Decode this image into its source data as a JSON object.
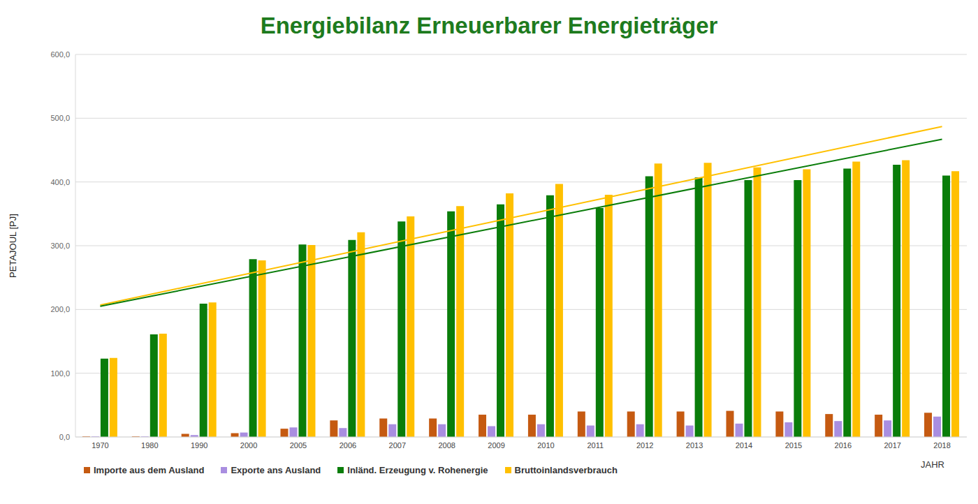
{
  "chart_data": {
    "type": "bar",
    "title": "Energiebilanz Erneuerbarer Energieträger",
    "x_label": "JAHR",
    "y_label": "PETAJOUL [PJ]",
    "categories": [
      "1970",
      "1980",
      "1990",
      "2000",
      "2005",
      "2006",
      "2007",
      "2008",
      "2009",
      "2010",
      "2011",
      "2012",
      "2013",
      "2014",
      "2015",
      "2016",
      "2017",
      "2018"
    ],
    "series": [
      {
        "name": "Importe aus dem Ausland",
        "color": "#c55a11",
        "values": [
          1,
          1,
          5,
          6,
          13,
          26,
          29,
          29,
          35,
          35,
          40,
          40,
          40,
          41,
          40,
          36,
          35,
          38
        ]
      },
      {
        "name": "Exporte ans Ausland",
        "color": "#a98ee0",
        "values": [
          1,
          1,
          3,
          7,
          15,
          14,
          20,
          20,
          17,
          20,
          18,
          20,
          18,
          21,
          23,
          25,
          26,
          32
        ]
      },
      {
        "name": "Inländ. Erzeugung v. Rohenergie",
        "color": "#0a7d0a",
        "values": [
          123,
          161,
          209,
          279,
          302,
          309,
          338,
          354,
          365,
          379,
          359,
          409,
          407,
          403,
          403,
          421,
          427,
          410
        ]
      },
      {
        "name": "Bruttoinlandsverbrauch",
        "color": "#ffc000",
        "values": [
          124,
          162,
          211,
          277,
          301,
          321,
          346,
          362,
          382,
          397,
          380,
          429,
          430,
          423,
          420,
          432,
          434,
          417
        ]
      }
    ],
    "trend_lines": [
      {
        "color": "#ffc000",
        "values": [
          207,
          null,
          null,
          null,
          null,
          null,
          null,
          null,
          null,
          null,
          null,
          null,
          null,
          null,
          null,
          null,
          null,
          487
        ]
      },
      {
        "color": "#0a7d0a",
        "values": [
          205,
          null,
          null,
          null,
          null,
          null,
          null,
          null,
          null,
          null,
          null,
          null,
          null,
          null,
          null,
          null,
          null,
          467
        ]
      }
    ],
    "ylim": [
      0,
      600
    ],
    "yticks": [
      {
        "value": 0,
        "label": "0,0"
      },
      {
        "value": 100,
        "label": "100,0"
      },
      {
        "value": 200,
        "label": "200,0"
      },
      {
        "value": 300,
        "label": "300,0"
      },
      {
        "value": 400,
        "label": "400,0"
      },
      {
        "value": 500,
        "label": "500,0"
      },
      {
        "value": 600,
        "label": "600,0"
      }
    ],
    "grid": true,
    "legend": "bottom left"
  }
}
